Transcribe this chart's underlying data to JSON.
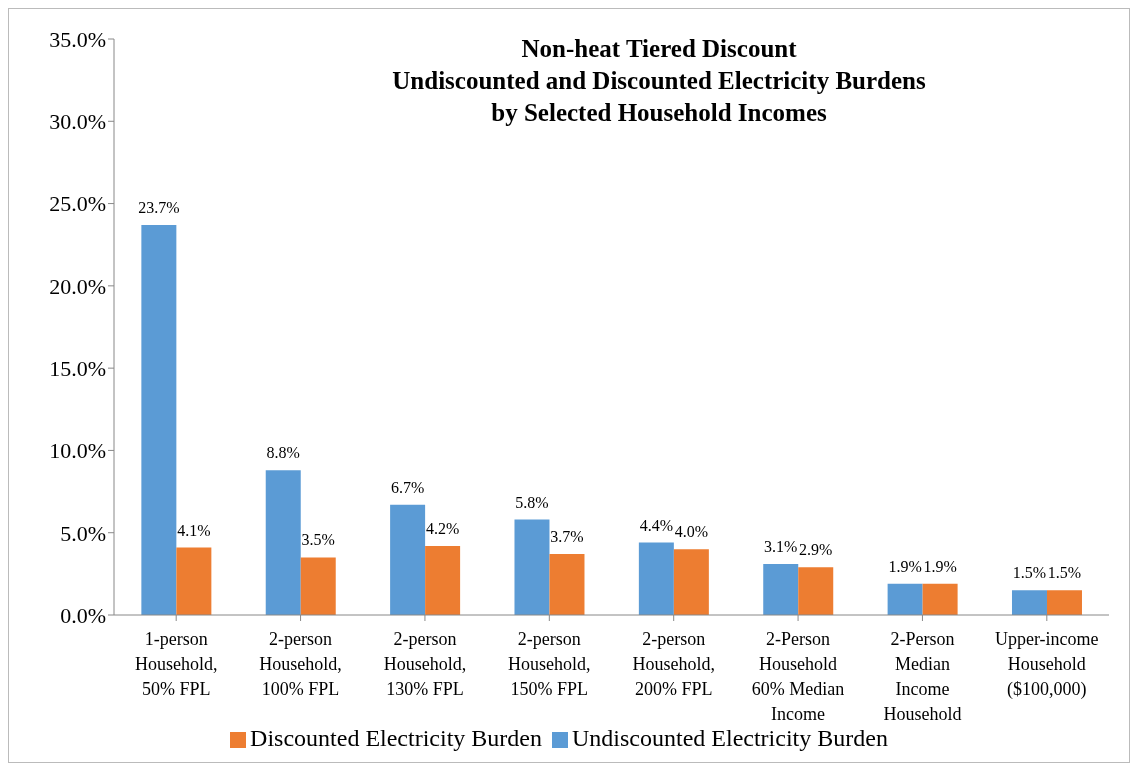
{
  "chart_data": {
    "type": "bar",
    "title": "Non-heat Tiered Discount\nUndiscounted and Discounted Electricity Burdens\nby Selected Household Incomes",
    "categories": [
      "1-person Household, 50% FPL",
      "2-person Household, 100% FPL",
      "2-person Household, 130% FPL",
      "2-person Household, 150% FPL",
      "2-person Household, 200% FPL",
      "2-Person Household 60% Median Income",
      "2-Person Median Income Household",
      "Upper-income Household ($100,000)"
    ],
    "series": [
      {
        "name": "Undiscounted Electricity Burden",
        "color": "#5b9bd5",
        "values": [
          23.7,
          8.8,
          6.7,
          5.8,
          4.4,
          3.1,
          1.9,
          1.5
        ],
        "value_labels": [
          "23.7%",
          "8.8%",
          "6.7%",
          "5.8%",
          "4.4%",
          "3.1%",
          "1.9%",
          "1.5%"
        ]
      },
      {
        "name": "Discounted Electricity Burden",
        "color": "#ed7d31",
        "values": [
          4.1,
          3.5,
          4.2,
          3.7,
          4.0,
          2.9,
          1.9,
          1.5
        ],
        "value_labels": [
          "4.1%",
          "3.5%",
          "4.2%",
          "3.7%",
          "4.0%",
          "2.9%",
          "1.9%",
          "1.5%"
        ]
      }
    ],
    "ylim": [
      0,
      35
    ],
    "yticks": [
      {
        "value": 0,
        "label": "0.0%"
      },
      {
        "value": 5,
        "label": "5.0%"
      },
      {
        "value": 10,
        "label": "10.0%"
      },
      {
        "value": 15,
        "label": "15.0%"
      },
      {
        "value": 20,
        "label": "20.0%"
      },
      {
        "value": 25,
        "label": "25.0%"
      },
      {
        "value": 30,
        "label": "30.0%"
      },
      {
        "value": 35,
        "label": "35.0%"
      }
    ],
    "legend": "bottom",
    "grid": false
  }
}
